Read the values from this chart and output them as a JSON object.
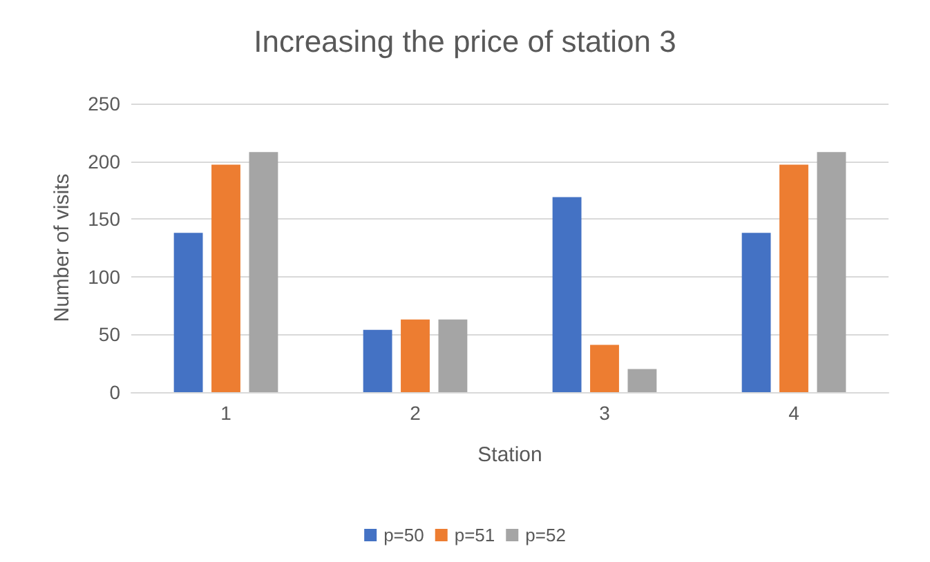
{
  "chart_data": {
    "type": "bar",
    "title": "Increasing the price of station 3",
    "xlabel": "Station",
    "ylabel": "Number of visits",
    "categories": [
      "1",
      "2",
      "3",
      "4"
    ],
    "series": [
      {
        "name": "p=50",
        "color": "#4472c4",
        "values": [
          138,
          54,
          169,
          138
        ]
      },
      {
        "name": "p=51",
        "color": "#ed7d31",
        "values": [
          197,
          63,
          41,
          197
        ]
      },
      {
        "name": "p=52",
        "color": "#a5a5a5",
        "values": [
          208,
          63,
          20,
          208
        ]
      }
    ],
    "ylim": [
      0,
      250
    ],
    "yticks": [
      0,
      50,
      100,
      150,
      200,
      250
    ],
    "grid": "y",
    "legend": "bottom"
  }
}
